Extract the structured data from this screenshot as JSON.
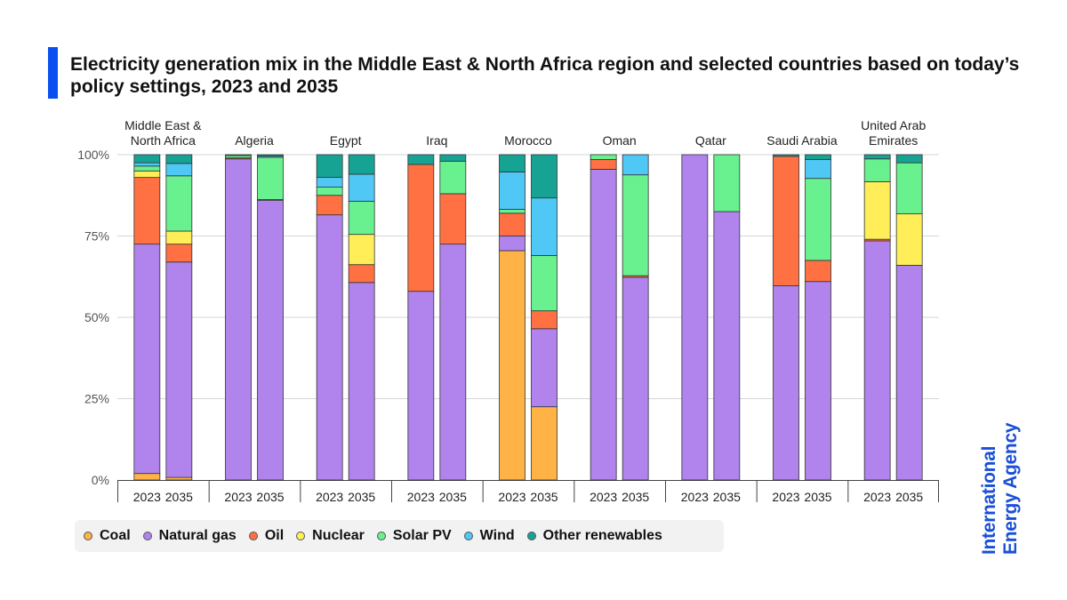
{
  "title": "Electricity generation mix in the Middle East & North Africa region and selected countries based on today’s policy settings, 2023 and 2035",
  "logo": {
    "line1": "International",
    "line2": "Energy Agency",
    "color": "#1a4fd6"
  },
  "chart_data": {
    "type": "bar",
    "stacked": true,
    "title": "Electricity generation mix in the Middle East & North Africa region and selected countries based on today’s policy settings, 2023 and 2035",
    "ylabel": "",
    "ylim": [
      0,
      100
    ],
    "yticks": [
      "0%",
      "25%",
      "50%",
      "75%",
      "100%"
    ],
    "grid": true,
    "legend_position": "bottom",
    "groups": [
      {
        "label": [
          "Middle East &",
          "North Africa"
        ],
        "years": [
          "2023",
          "2035"
        ]
      },
      {
        "label": [
          "Algeria"
        ],
        "years": [
          "2023",
          "2035"
        ]
      },
      {
        "label": [
          "Egypt"
        ],
        "years": [
          "2023",
          "2035"
        ]
      },
      {
        "label": [
          "Iraq"
        ],
        "years": [
          "2023",
          "2035"
        ]
      },
      {
        "label": [
          "Morocco"
        ],
        "years": [
          "2023",
          "2035"
        ]
      },
      {
        "label": [
          "Oman"
        ],
        "years": [
          "2023",
          "2035"
        ]
      },
      {
        "label": [
          "Qatar"
        ],
        "years": [
          "2023",
          "2035"
        ]
      },
      {
        "label": [
          "Saudi Arabia"
        ],
        "years": [
          "2023",
          "2035"
        ]
      },
      {
        "label": [
          "United Arab",
          "Emirates"
        ],
        "years": [
          "2023",
          "2035"
        ]
      }
    ],
    "categories": [
      "Middle East & North Africa 2023",
      "Middle East & North Africa 2035",
      "Algeria 2023",
      "Algeria 2035",
      "Egypt 2023",
      "Egypt 2035",
      "Iraq 2023",
      "Iraq 2035",
      "Morocco 2023",
      "Morocco 2035",
      "Oman 2023",
      "Oman 2035",
      "Qatar 2023",
      "Qatar 2035",
      "Saudi Arabia 2023",
      "Saudi Arabia 2035",
      "United Arab Emirates 2023",
      "United Arab Emirates 2035"
    ],
    "series": [
      {
        "name": "Coal",
        "color": "#ffb347",
        "values": [
          2,
          0.8,
          0,
          0,
          0,
          0,
          0,
          0,
          70.5,
          22.5,
          0,
          0,
          0,
          0,
          0,
          0,
          0,
          0
        ]
      },
      {
        "name": "Natural gas",
        "color": "#b084ec",
        "values": [
          70.5,
          66.2,
          98.7,
          86,
          81.5,
          60.7,
          58,
          72.5,
          4.5,
          24,
          95.5,
          62.3,
          100,
          82.5,
          59.7,
          61,
          73.5,
          66
        ]
      },
      {
        "name": "Oil",
        "color": "#ff7043",
        "values": [
          20.5,
          5.5,
          0.3,
          0.2,
          6,
          5.5,
          39,
          15.5,
          7,
          5.5,
          3,
          0.5,
          0,
          0,
          39.8,
          6.5,
          0.5,
          0
        ]
      },
      {
        "name": "Nuclear",
        "color": "#ffee58",
        "values": [
          2,
          4,
          0,
          0,
          0,
          9.3,
          0,
          0,
          0,
          0,
          0,
          0,
          0,
          0,
          0,
          0,
          17.7,
          15.8
        ]
      },
      {
        "name": "Solar PV",
        "color": "#69f08f",
        "values": [
          1.5,
          17,
          0.7,
          13,
          2.5,
          10.2,
          0,
          10,
          1.2,
          17,
          1.5,
          31,
          0,
          17.5,
          0,
          25.2,
          7,
          15.7
        ]
      },
      {
        "name": "Wind",
        "color": "#4fc8f5",
        "values": [
          1,
          3.8,
          0,
          0.4,
          3,
          8.3,
          0,
          0,
          11.5,
          17.7,
          0,
          6.2,
          0,
          0,
          0,
          5.8,
          0,
          0
        ]
      },
      {
        "name": "Other renewables",
        "color": "#16a394",
        "values": [
          2.5,
          2.7,
          0.3,
          0.4,
          7,
          6,
          3,
          2,
          5.3,
          13.3,
          0,
          0,
          0,
          0,
          0.5,
          1.5,
          1.3,
          2.5
        ]
      }
    ]
  },
  "legend": [
    {
      "label": "Coal",
      "color": "#ffb347"
    },
    {
      "label": "Natural gas",
      "color": "#b084ec"
    },
    {
      "label": "Oil",
      "color": "#ff7043"
    },
    {
      "label": "Nuclear",
      "color": "#ffee58"
    },
    {
      "label": "Solar PV",
      "color": "#69f08f"
    },
    {
      "label": "Wind",
      "color": "#4fc8f5"
    },
    {
      "label": "Other renewables",
      "color": "#16a394"
    }
  ]
}
